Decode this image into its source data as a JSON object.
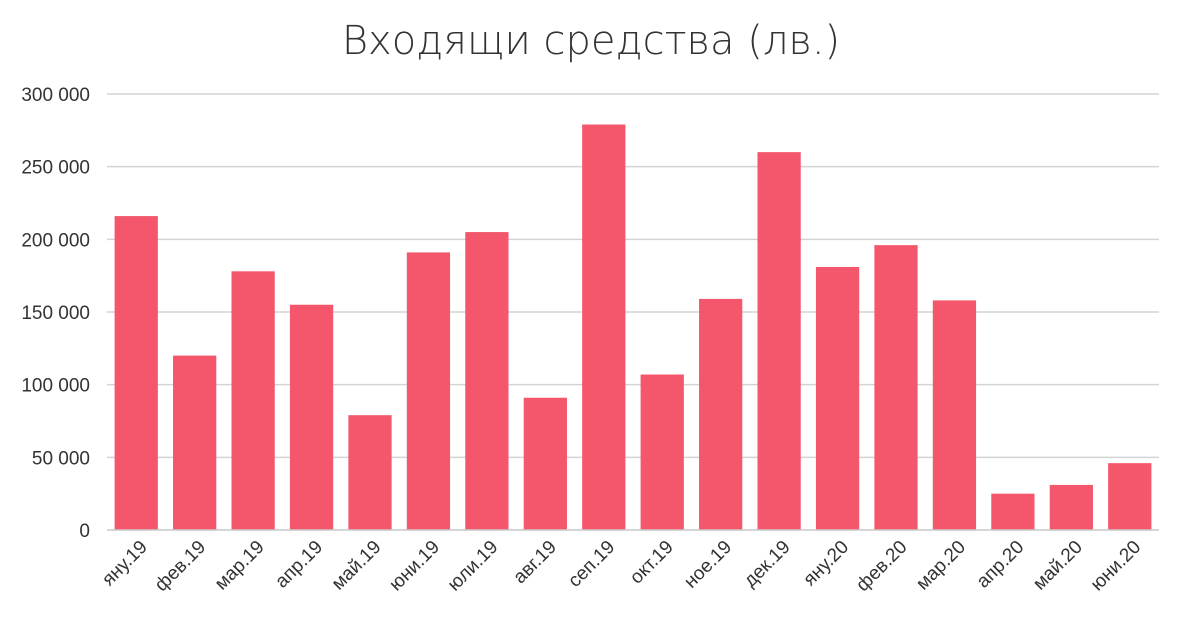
{
  "chart_data": {
    "type": "bar",
    "title": "Входящи средства (лв.)",
    "xlabel": "",
    "ylabel": "",
    "ylim": [
      0,
      300000
    ],
    "yticks": [
      0,
      50000,
      100000,
      150000,
      200000,
      250000,
      300000
    ],
    "ytick_labels": [
      "0",
      "50 000",
      "100 000",
      "150 000",
      "200 000",
      "250 000",
      "300 000"
    ],
    "grid": true,
    "legend": "none",
    "bar_color": "#f4576c",
    "categories": [
      "яну.19",
      "фев.19",
      "мар.19",
      "апр.19",
      "май.19",
      "юни.19",
      "юли.19",
      "авг.19",
      "сеп.19",
      "окт.19",
      "ное.19",
      "дек.19",
      "яну.20",
      "фев.20",
      "мар.20",
      "апр.20",
      "май.20",
      "юни.20"
    ],
    "values": [
      216000,
      120000,
      178000,
      155000,
      79000,
      191000,
      205000,
      91000,
      279000,
      107000,
      159000,
      260000,
      181000,
      196000,
      158000,
      25000,
      31000,
      46000
    ]
  }
}
